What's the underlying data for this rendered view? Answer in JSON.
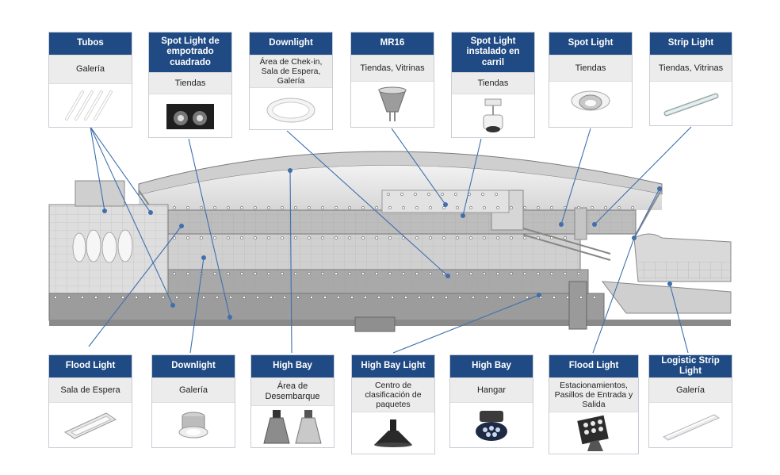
{
  "top_cards": [
    {
      "title": "Tubos",
      "location": "Galería",
      "icon": "tube-lights-icon"
    },
    {
      "title": "Spot Light de empotrado cuadrado",
      "location": "Tiendas",
      "icon": "recessed-square-spot-icon"
    },
    {
      "title": "Downlight",
      "location": "Área de Chek-in, Sala de Espera, Galería",
      "icon": "round-downlight-icon"
    },
    {
      "title": "MR16",
      "location": "Tiendas, Vitrinas",
      "icon": "mr16-bulb-icon"
    },
    {
      "title": "Spot Light instalado en carril",
      "location": "Tiendas",
      "icon": "track-spot-icon"
    },
    {
      "title": "Spot Light",
      "location": "Tiendas",
      "icon": "gimbal-spot-icon"
    },
    {
      "title": "Strip Light",
      "location": "Tiendas, Vitrinas",
      "icon": "strip-bar-icon"
    }
  ],
  "bottom_cards": [
    {
      "title": "Flood Light",
      "location": "Sala de Espera",
      "icon": "flood-panel-icon"
    },
    {
      "title": "Downlight",
      "location": "Galería",
      "icon": "cylinder-downlight-icon"
    },
    {
      "title": "High Bay",
      "location": "Área de Desembarque",
      "icon": "high-bay-pair-icon"
    },
    {
      "title": "High Bay Light",
      "location": "Centro de clasificación de paquetes",
      "icon": "ufo-high-bay-icon"
    },
    {
      "title": "High Bay",
      "location": "Hangar",
      "icon": "led-high-bay-icon"
    },
    {
      "title": "Flood Light",
      "location": "Estacionamientos, Pasillos de Entrada y Salida",
      "icon": "led-flood-icon"
    },
    {
      "title": "Logistic Strip Light",
      "location": "Galería",
      "icon": "logistic-strip-icon"
    }
  ],
  "colors": {
    "header": "#1f4a84",
    "connector": "#3f6fad",
    "structure": "#7d7d7d"
  }
}
